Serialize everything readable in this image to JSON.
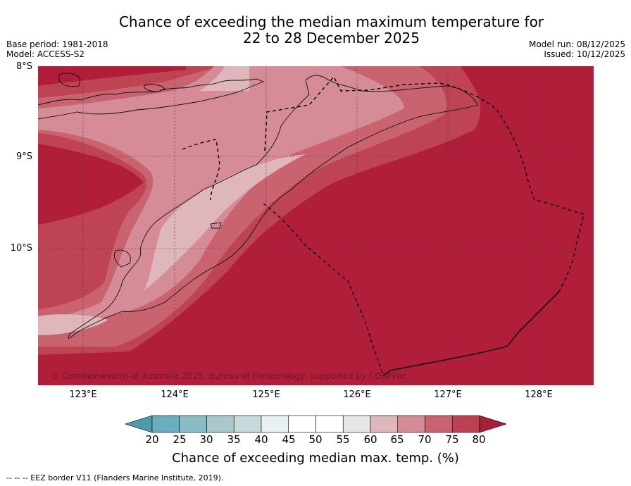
{
  "title": {
    "line1": "Chance of exceeding the median maximum temperature for",
    "line2": "22 to 28 December 2025"
  },
  "meta": {
    "base_period": "Base period: 1981-2018",
    "model": "Model: ACCESS-S2",
    "model_run": "Model run: 08/12/2025",
    "issued": "Issued: 10/12/2025"
  },
  "map": {
    "lat_labels": [
      "8°S",
      "9°S",
      "10°S"
    ],
    "lon_labels": [
      "123°E",
      "124°E",
      "125°E",
      "126°E",
      "127°E",
      "128°E"
    ],
    "copyright": "© Commonwealth of Australia 2025, Bureau of Meteorology, supported by COSPPac"
  },
  "colorbar": {
    "ticks": [
      "20",
      "25",
      "30",
      "35",
      "40",
      "45",
      "50",
      "55",
      "60",
      "65",
      "70",
      "75",
      "80"
    ],
    "label": "Chance of exceeding median max. temp. (%)",
    "colors": [
      "#4d9aaa",
      "#6aaebd",
      "#8bbcc5",
      "#a9c8cc",
      "#c8d9dc",
      "#e8f0f1",
      "#ffffff",
      "#ffffff",
      "#e6e6e6",
      "#e0b6bd",
      "#d58c97",
      "#c9636f",
      "#bb4252",
      "#a81d38"
    ]
  },
  "legend_footer": "--  --  -- EEZ border V11 (Flanders Marine Institute, 2019)."
}
